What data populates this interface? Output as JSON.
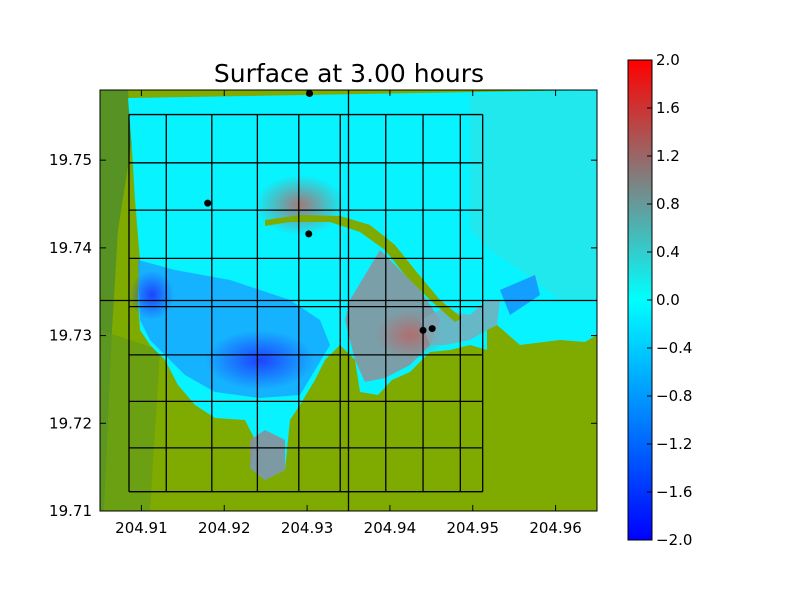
{
  "chart_data": {
    "type": "heatmap",
    "title": "Surface at 3.00 hours",
    "xlabel": "",
    "ylabel": "",
    "xlim": [
      204.905,
      204.965
    ],
    "ylim": [
      19.71,
      19.758
    ],
    "x_ticks": [
      "204.91",
      "204.92",
      "204.93",
      "204.94",
      "204.95",
      "204.96"
    ],
    "y_ticks": [
      "19.71",
      "19.72",
      "19.73",
      "19.74",
      "19.75"
    ],
    "colorbar": {
      "min": -2.0,
      "max": 2.0,
      "ticks": [
        "2.0",
        "1.6",
        "1.2",
        "0.8",
        "0.4",
        "0.0",
        "−0.4",
        "−0.8",
        "−1.2",
        "−1.6",
        "−2.0"
      ],
      "colors": [
        "#0000ff",
        "#00ffff",
        "#808080",
        "#ff0000"
      ]
    },
    "land_color": "#7faa00",
    "grid_x": [
      204.9085,
      204.913,
      204.9185,
      204.924,
      204.929,
      204.934,
      204.9395,
      204.944,
      204.9485,
      204.9512
    ],
    "grid_y": [
      19.7122,
      19.7172,
      19.7225,
      19.7278,
      19.7333,
      19.7388,
      19.7443,
      19.7497,
      19.7552
    ],
    "crosshair": {
      "x": 204.935,
      "y": 19.734
    },
    "markers": [
      {
        "x": 204.9303,
        "y": 19.7576
      },
      {
        "x": 204.918,
        "y": 19.7451
      },
      {
        "x": 204.9302,
        "y": 19.7416
      },
      {
        "x": 204.944,
        "y": 19.7306
      },
      {
        "x": 204.9451,
        "y": 19.7308
      }
    ]
  }
}
